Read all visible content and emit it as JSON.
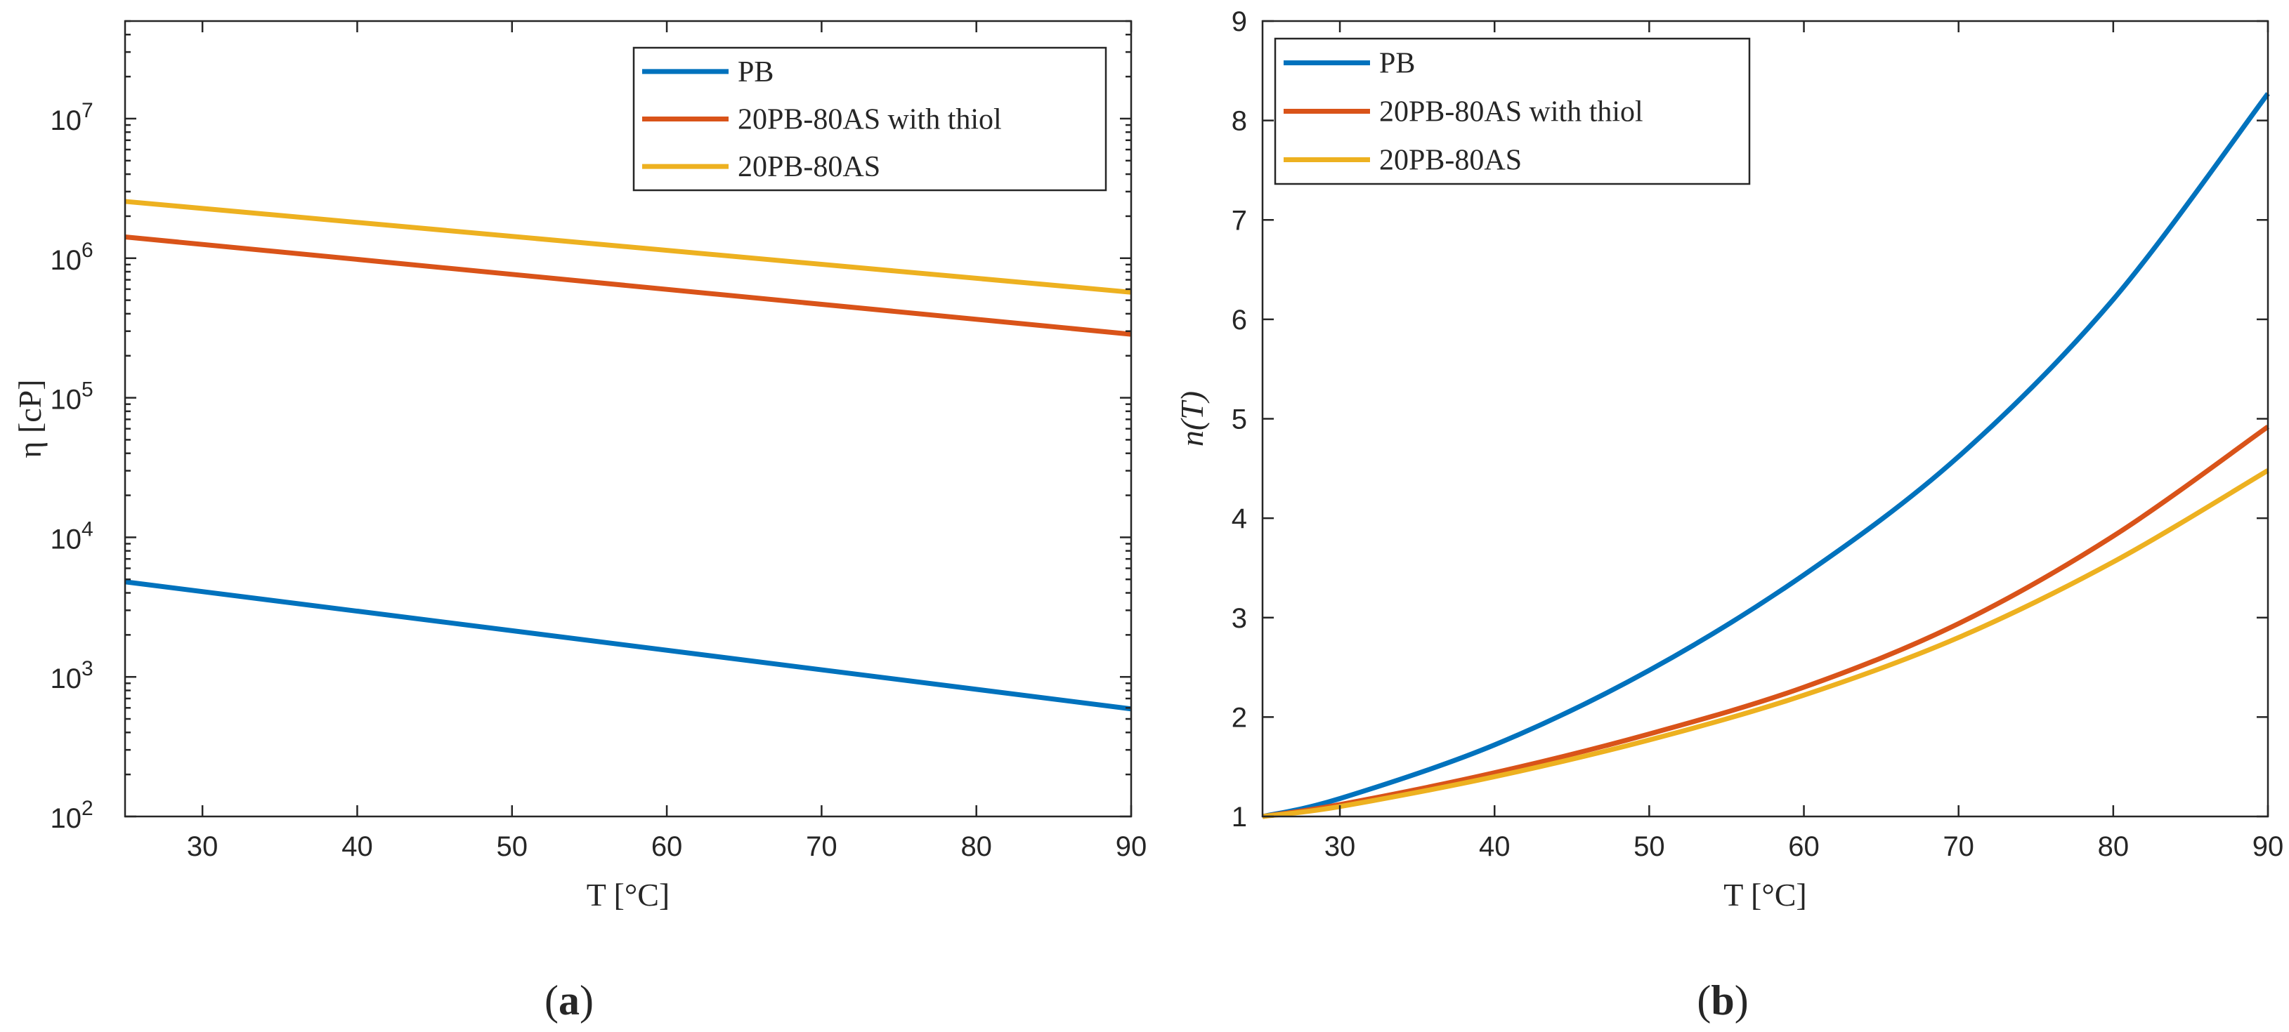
{
  "panels": {
    "a": {
      "label_paren_open": "(",
      "label_letter": "a",
      "label_paren_close": ")"
    },
    "b": {
      "label_paren_open": "(",
      "label_letter": "b",
      "label_paren_close": ")"
    }
  },
  "chart_data": [
    {
      "type": "line",
      "panel": "a",
      "title": "",
      "xlabel": "T [°C]",
      "ylabel": "η [cP]",
      "xlim": [
        25,
        90
      ],
      "ylim": [
        100,
        50000000
      ],
      "yscale": "log",
      "x_ticks": [
        30,
        40,
        50,
        60,
        70,
        80,
        90
      ],
      "x_tick_labels": [
        "30",
        "40",
        "50",
        "60",
        "70",
        "80",
        "90"
      ],
      "y_ticks": [
        100,
        1000,
        10000,
        100000,
        1000000,
        10000000
      ],
      "y_tick_labels": [
        {
          "base": "10",
          "exp": "2"
        },
        {
          "base": "10",
          "exp": "3"
        },
        {
          "base": "10",
          "exp": "4"
        },
        {
          "base": "10",
          "exp": "5"
        },
        {
          "base": "10",
          "exp": "6"
        },
        {
          "base": "10",
          "exp": "7"
        }
      ],
      "grid": false,
      "legend_position": "top-right",
      "x": [
        25,
        90
      ],
      "series": [
        {
          "name": "PB",
          "color": "#0072BD",
          "values": [
            4800,
            590
          ]
        },
        {
          "name": "20PB-80AS with thiol",
          "color": "#D95319",
          "values": [
            1420000,
            285000
          ]
        },
        {
          "name": "20PB-80AS",
          "color": "#EDB120",
          "values": [
            2550000,
            570000
          ]
        }
      ]
    },
    {
      "type": "line",
      "panel": "b",
      "title": "",
      "xlabel": "T [°C]",
      "ylabel": "n(T)",
      "xlim": [
        25,
        90
      ],
      "ylim": [
        1,
        9
      ],
      "yscale": "linear",
      "x_ticks": [
        30,
        40,
        50,
        60,
        70,
        80,
        90
      ],
      "x_tick_labels": [
        "30",
        "40",
        "50",
        "60",
        "70",
        "80",
        "90"
      ],
      "y_ticks": [
        1,
        2,
        3,
        4,
        5,
        6,
        7,
        8,
        9
      ],
      "y_tick_labels": [
        "1",
        "2",
        "3",
        "4",
        "5",
        "6",
        "7",
        "8",
        "9"
      ],
      "grid": false,
      "legend_position": "top-left",
      "x": [
        25,
        30,
        40,
        50,
        60,
        70,
        80,
        90
      ],
      "series": [
        {
          "name": "PB",
          "color": "#0072BD",
          "values": [
            1.0,
            1.18,
            1.72,
            2.47,
            3.43,
            4.62,
            6.2,
            8.27
          ]
        },
        {
          "name": "20PB-80AS with thiol",
          "color": "#D95319",
          "values": [
            1.0,
            1.12,
            1.44,
            1.83,
            2.3,
            2.94,
            3.82,
            4.92
          ]
        },
        {
          "name": "20PB-80AS",
          "color": "#EDB120",
          "values": [
            1.0,
            1.1,
            1.4,
            1.77,
            2.22,
            2.8,
            3.56,
            4.48
          ]
        }
      ]
    }
  ]
}
